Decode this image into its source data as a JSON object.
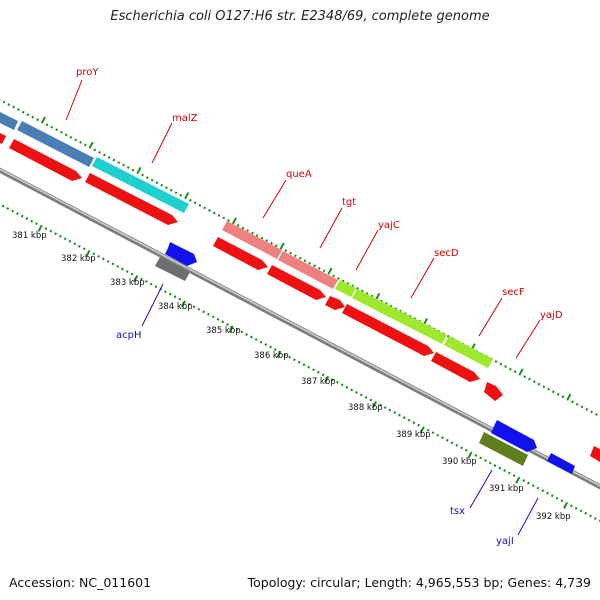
{
  "title": "Escherichia coli O127:H6 str. E2348/69, complete genome",
  "footer": {
    "accession": "Accession: NC_011601",
    "summary": "Topology: circular; Length: 4,965,553 bp; Genes: 4,739"
  },
  "colors": {
    "backbone": "#9b9b9b",
    "tick": "#1e8c1e",
    "label_red": "#d40000",
    "label_blue": "#1010c0",
    "label_line_red": "#d40000",
    "label_line_blue": "#1010c0"
  },
  "genes_forward": [
    {
      "name": "proY",
      "color": "#4a7fb5"
    },
    {
      "name": "malZ",
      "color": "#1fd0d0"
    },
    {
      "name": "queA",
      "color": "#ee8080"
    },
    {
      "name": "tgt",
      "color": "#ee8080"
    },
    {
      "name": "yajC",
      "color": "#9ee82e"
    },
    {
      "name": "secD",
      "color": "#9ee82e"
    },
    {
      "name": "secF",
      "color": "#9ee82e"
    }
  ],
  "genes_reverse_labels": [
    {
      "name": "acpH",
      "color": "#1010c0"
    },
    {
      "name": "tsx",
      "color": "#1010c0"
    },
    {
      "name": "yajI",
      "color": "#1010c0"
    }
  ],
  "gene_label_names": [
    "proY",
    "malZ",
    "queA",
    "tgt",
    "yajC",
    "secD",
    "secF",
    "yajD"
  ],
  "kbp_labels": [
    "381 kbp",
    "382 kbp",
    "383 kbp",
    "384 kbp",
    "385 kbp",
    "386 kbp",
    "387 kbp",
    "388 kbp",
    "389 kbp",
    "390 kbp",
    "391 kbp",
    "392 kbp"
  ]
}
